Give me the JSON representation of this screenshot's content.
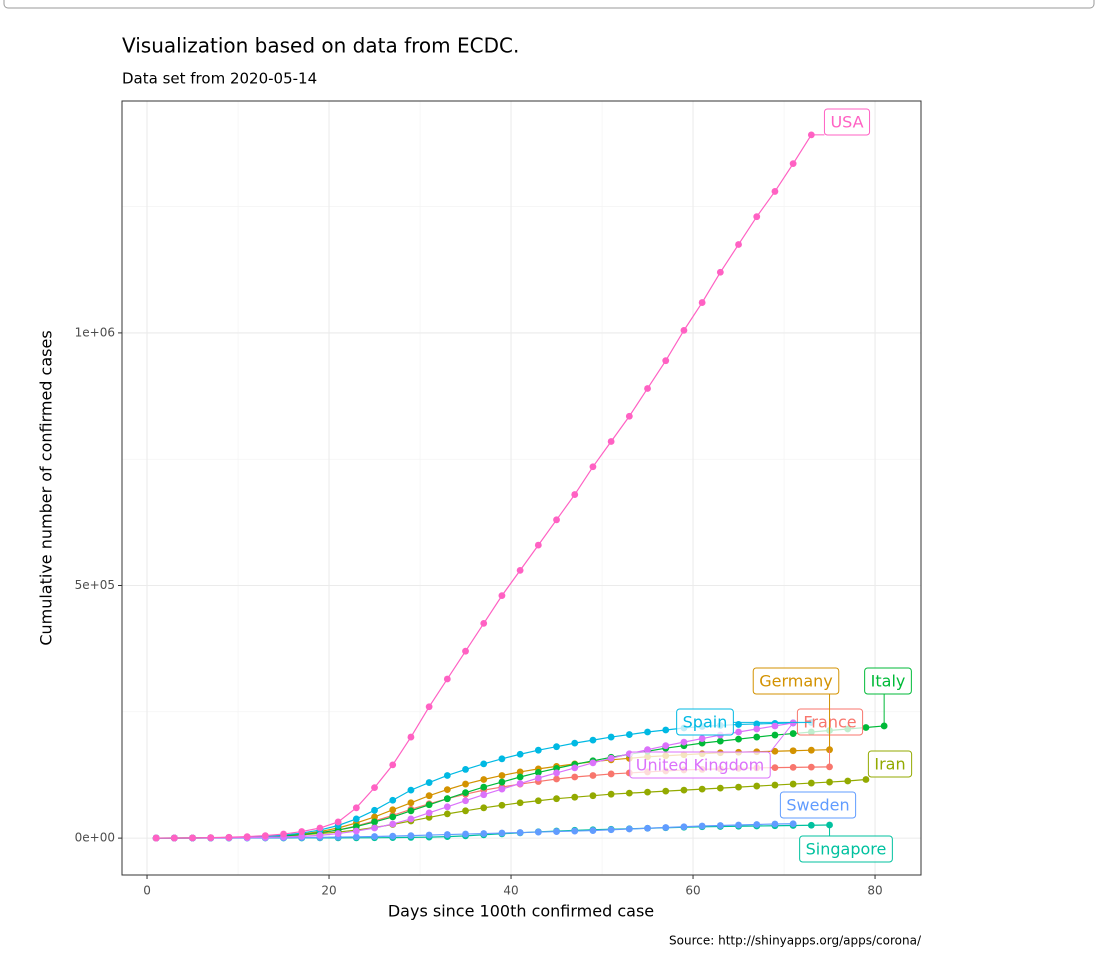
{
  "chart_data": {
    "type": "line",
    "title": "Visualization based on data from ECDC.",
    "subtitle": "Data set from 2020-05-14",
    "x_label": "Days since 100th confirmed case",
    "y_label": "Cumulative number of confirmed cases",
    "caption": "Source: http://shinyapps.org/apps/corona/",
    "xlim": [
      -2.75,
      85.05
    ],
    "xticks": [
      0,
      20,
      40,
      60,
      80
    ],
    "ylim": [
      -73000,
      1459000
    ],
    "yticks": [
      {
        "value": 0,
        "label": "0e+00"
      },
      {
        "value": 500000,
        "label": "5e+05"
      },
      {
        "value": 1000000,
        "label": "1e+06"
      }
    ],
    "grid": true,
    "series": [
      {
        "name": "France",
        "color": "#F8766D",
        "x": [
          1,
          3,
          5,
          7,
          9,
          11,
          13,
          15,
          17,
          19,
          21,
          23,
          25,
          27,
          29,
          31,
          33,
          35,
          37,
          39,
          41,
          43,
          45,
          47,
          49,
          51,
          53,
          55,
          57,
          59,
          61,
          63,
          65,
          67,
          69,
          71,
          73,
          75
        ],
        "values": [
          100,
          150,
          250,
          400,
          700,
          1200,
          2000,
          3500,
          6000,
          10000,
          16000,
          24000,
          34000,
          45000,
          57000,
          68000,
          78000,
          87000,
          95000,
          101000,
          107000,
          112000,
          117000,
          121000,
          124000,
          127000,
          129000,
          131000,
          133000,
          135000,
          136000,
          137000,
          138000,
          139000,
          139500,
          140000,
          140500,
          141000
        ]
      },
      {
        "name": "Germany",
        "color": "#D39200",
        "x": [
          1,
          3,
          5,
          7,
          9,
          11,
          13,
          15,
          17,
          19,
          21,
          23,
          25,
          27,
          29,
          31,
          33,
          35,
          37,
          39,
          41,
          43,
          45,
          47,
          49,
          51,
          53,
          55,
          57,
          59,
          61,
          63,
          65,
          67,
          69,
          71,
          73,
          75
        ],
        "values": [
          100,
          150,
          300,
          600,
          1000,
          1800,
          3000,
          5000,
          8000,
          13000,
          20000,
          30000,
          42000,
          56000,
          70000,
          84000,
          96000,
          107000,
          116000,
          124000,
          131000,
          137000,
          142000,
          147000,
          151000,
          155000,
          158000,
          161000,
          163000,
          165000,
          167000,
          169000,
          170000,
          171000,
          172000,
          173000,
          174000,
          175000
        ]
      },
      {
        "name": "Iran",
        "color": "#93AA00",
        "x": [
          1,
          3,
          5,
          7,
          9,
          11,
          13,
          15,
          17,
          19,
          21,
          23,
          25,
          27,
          29,
          31,
          33,
          35,
          37,
          39,
          41,
          43,
          45,
          47,
          49,
          51,
          53,
          55,
          57,
          59,
          61,
          63,
          65,
          67,
          69,
          71,
          73,
          75,
          77,
          79
        ],
        "values": [
          100,
          200,
          400,
          700,
          1200,
          2000,
          3000,
          4500,
          6500,
          9000,
          12000,
          16000,
          21000,
          27000,
          34000,
          41000,
          48000,
          54000,
          60000,
          65000,
          70000,
          74000,
          78000,
          81000,
          84000,
          87000,
          89000,
          91000,
          93000,
          95000,
          97000,
          99000,
          101000,
          103000,
          105000,
          107000,
          109000,
          111000,
          113000,
          116000
        ]
      },
      {
        "name": "Italy",
        "color": "#00BA38",
        "x": [
          1,
          3,
          5,
          7,
          9,
          11,
          13,
          15,
          17,
          19,
          21,
          23,
          25,
          27,
          29,
          31,
          33,
          35,
          37,
          39,
          41,
          43,
          45,
          47,
          49,
          51,
          53,
          55,
          57,
          59,
          61,
          63,
          65,
          67,
          69,
          71,
          73,
          75,
          77,
          79,
          81
        ],
        "values": [
          100,
          150,
          300,
          500,
          900,
          1600,
          2800,
          4500,
          7000,
          11000,
          16000,
          23000,
          32000,
          42000,
          54000,
          66000,
          78000,
          90000,
          101000,
          111000,
          121000,
          130000,
          138000,
          146000,
          153000,
          160000,
          166000,
          172000,
          178000,
          183000,
          188000,
          192000,
          196000,
          200000,
          204000,
          207000,
          210000,
          213000,
          216000,
          219000,
          222000
        ]
      },
      {
        "name": "Singapore",
        "color": "#00C19F",
        "x": [
          1,
          3,
          5,
          7,
          9,
          11,
          13,
          15,
          17,
          19,
          21,
          23,
          25,
          27,
          29,
          31,
          33,
          35,
          37,
          39,
          41,
          43,
          45,
          47,
          49,
          51,
          53,
          55,
          57,
          59,
          61,
          63,
          65,
          67,
          69,
          71,
          73,
          75
        ],
        "values": [
          100,
          110,
          120,
          140,
          160,
          190,
          230,
          280,
          350,
          430,
          520,
          650,
          800,
          1000,
          1400,
          2000,
          3000,
          4500,
          6500,
          8500,
          10500,
          12500,
          14000,
          15500,
          16500,
          17500,
          18500,
          19500,
          20500,
          21500,
          22500,
          23000,
          23500,
          24000,
          24500,
          25000,
          25500,
          26000
        ]
      },
      {
        "name": "Spain",
        "color": "#00B9E3",
        "x": [
          1,
          3,
          5,
          7,
          9,
          11,
          13,
          15,
          17,
          19,
          21,
          23,
          25,
          27,
          29,
          31,
          33,
          35,
          37,
          39,
          41,
          43,
          45,
          47,
          49,
          51,
          53,
          55,
          57,
          59,
          61,
          63,
          65,
          67,
          69,
          71,
          73
        ],
        "values": [
          100,
          200,
          400,
          700,
          1200,
          2000,
          3500,
          6000,
          10000,
          16000,
          25000,
          38000,
          55000,
          75000,
          95000,
          110000,
          124000,
          136000,
          147000,
          157000,
          166000,
          174000,
          181000,
          188000,
          194000,
          200000,
          205000,
          210000,
          214000,
          218000,
          221000,
          223000,
          225000,
          226000,
          227000,
          228000,
          229000
        ]
      },
      {
        "name": "Sweden",
        "color": "#619CFF",
        "x": [
          1,
          3,
          5,
          7,
          9,
          11,
          13,
          15,
          17,
          19,
          21,
          23,
          25,
          27,
          29,
          31,
          33,
          35,
          37,
          39,
          41,
          43,
          45,
          47,
          49,
          51,
          53,
          55,
          57,
          59,
          61,
          63,
          65,
          67,
          69,
          71
        ],
        "values": [
          100,
          120,
          150,
          200,
          300,
          400,
          500,
          700,
          1000,
          1400,
          1900,
          2500,
          3200,
          4000,
          5000,
          6000,
          7000,
          8000,
          9000,
          10000,
          11000,
          12000,
          13000,
          14000,
          15000,
          16500,
          18000,
          19500,
          21000,
          22500,
          24000,
          25000,
          26000,
          27000,
          28000,
          28500
        ]
      },
      {
        "name": "United Kingdom",
        "color": "#DB72FB",
        "x": [
          1,
          3,
          5,
          7,
          9,
          11,
          13,
          15,
          17,
          19,
          21,
          23,
          25,
          27,
          29,
          31,
          33,
          35,
          37,
          39,
          41,
          43,
          45,
          47,
          49,
          51,
          53,
          55,
          57,
          59,
          61,
          63,
          65,
          67,
          69,
          71
        ],
        "values": [
          100,
          150,
          250,
          400,
          600,
          900,
          1400,
          2200,
          3500,
          5500,
          9000,
          14000,
          20000,
          28000,
          38000,
          50000,
          62000,
          74000,
          86000,
          97000,
          108000,
          119000,
          129000,
          139000,
          149000,
          158000,
          167000,
          175000,
          183000,
          190000,
          197000,
          204000,
          210000,
          216000,
          222000,
          228000
        ]
      },
      {
        "name": "USA",
        "color": "#FF61C3",
        "x": [
          1,
          3,
          5,
          7,
          9,
          11,
          13,
          15,
          17,
          19,
          21,
          23,
          25,
          27,
          29,
          31,
          33,
          35,
          37,
          39,
          41,
          43,
          45,
          47,
          49,
          51,
          53,
          55,
          57,
          59,
          61,
          63,
          65,
          67,
          69,
          71,
          73
        ],
        "values": [
          100,
          250,
          500,
          1000,
          1700,
          3000,
          5000,
          8000,
          13000,
          20000,
          32000,
          60000,
          100000,
          145000,
          200000,
          260000,
          315000,
          370000,
          425000,
          480000,
          530000,
          580000,
          630000,
          680000,
          735000,
          785000,
          835000,
          890000,
          945000,
          1005000,
          1060000,
          1120000,
          1175000,
          1230000,
          1280000,
          1335000,
          1392000
        ]
      }
    ]
  }
}
